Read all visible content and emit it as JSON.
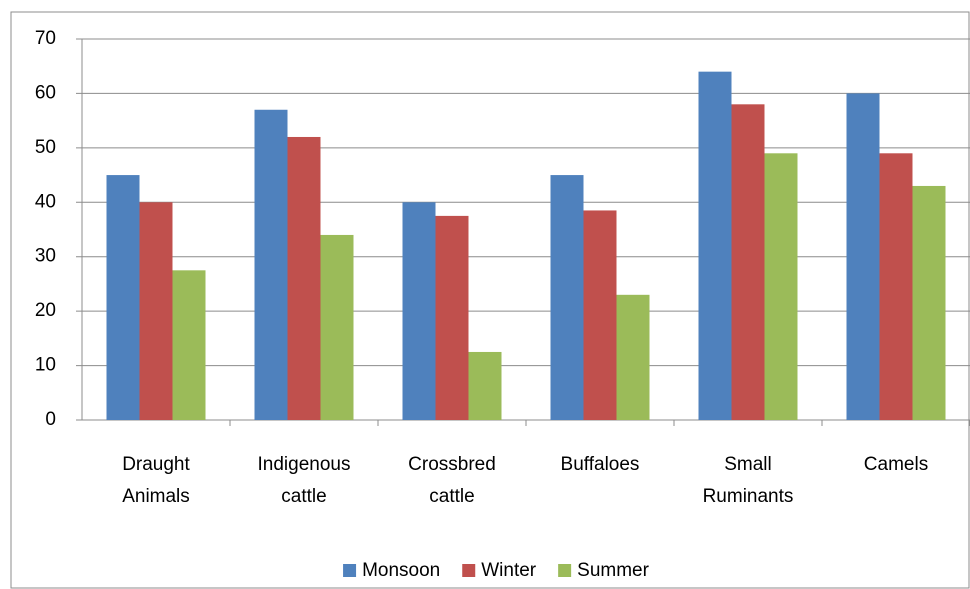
{
  "chart_data": {
    "type": "bar",
    "categories": [
      "Draught Animals",
      "Indigenous cattle",
      "Crossbred cattle",
      "Buffaloes",
      "Small Ruminants",
      "Camels"
    ],
    "series": [
      {
        "name": "Monsoon",
        "color": "#4f81bd",
        "values": [
          45,
          57,
          40,
          45,
          64,
          60
        ]
      },
      {
        "name": "Winter",
        "color": "#c0504d",
        "values": [
          40,
          52,
          37.5,
          38.5,
          58,
          49
        ]
      },
      {
        "name": "Summer",
        "color": "#9bbb59",
        "values": [
          27.5,
          34,
          12.5,
          23,
          49,
          43
        ]
      }
    ],
    "ylim": [
      0,
      70
    ],
    "yticks": [
      0,
      10,
      20,
      30,
      40,
      50,
      60,
      70
    ],
    "grid": true,
    "legend": "bottom"
  }
}
